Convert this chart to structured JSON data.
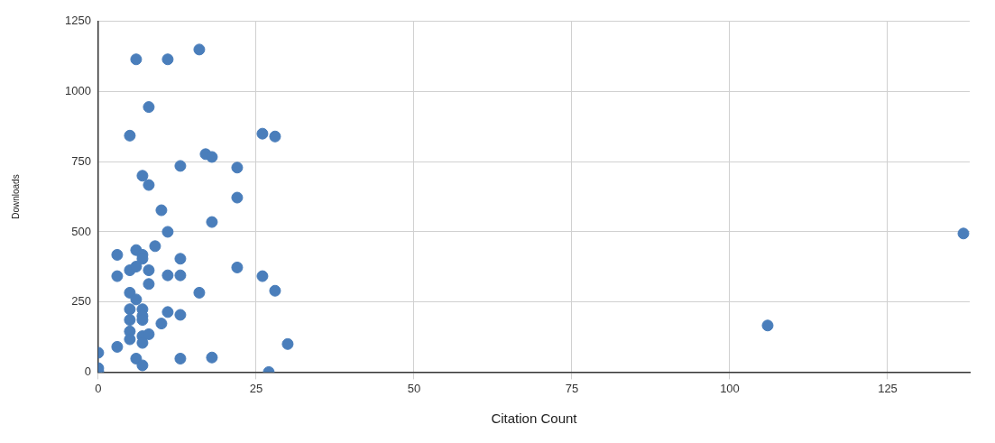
{
  "chart_data": {
    "type": "scatter",
    "xlabel": "Citation Count",
    "ylabel": "Downloads",
    "xlim": [
      0,
      138
    ],
    "xticks": [
      0,
      25,
      50,
      75,
      100,
      125
    ],
    "ylim": [
      0,
      1250
    ],
    "yticks": [
      0,
      250,
      500,
      750,
      1000,
      1250
    ],
    "grid": true,
    "legend": false,
    "marker": "circle",
    "series": [
      {
        "color": "#4a7ebb",
        "x": [
          6,
          11,
          16,
          8,
          5,
          26,
          28,
          17,
          18,
          13,
          22,
          7,
          8,
          22,
          10,
          18,
          11,
          137,
          3,
          6,
          9,
          7,
          7,
          13,
          5,
          6,
          8,
          3,
          11,
          13,
          22,
          26,
          8,
          16,
          28,
          5,
          6,
          5,
          7,
          7,
          7,
          5,
          11,
          13,
          10,
          5,
          5,
          7,
          8,
          7,
          3,
          106,
          30,
          0,
          6,
          7,
          13,
          18,
          0,
          0,
          27
        ],
        "values": [
          1115,
          1115,
          1150,
          945,
          843,
          850,
          840,
          777,
          767,
          735,
          729,
          700,
          667,
          622,
          577,
          535,
          500,
          494,
          418,
          435,
          449,
          418,
          404,
          404,
          363,
          376,
          363,
          342,
          345,
          345,
          373,
          342,
          314,
          283,
          290,
          283,
          259,
          224,
          224,
          200,
          186,
          186,
          214,
          204,
          173,
          145,
          117,
          128,
          135,
          104,
          90,
          166,
          100,
          69,
          48,
          24,
          48,
          52,
          14,
          3,
          0
        ]
      }
    ]
  }
}
